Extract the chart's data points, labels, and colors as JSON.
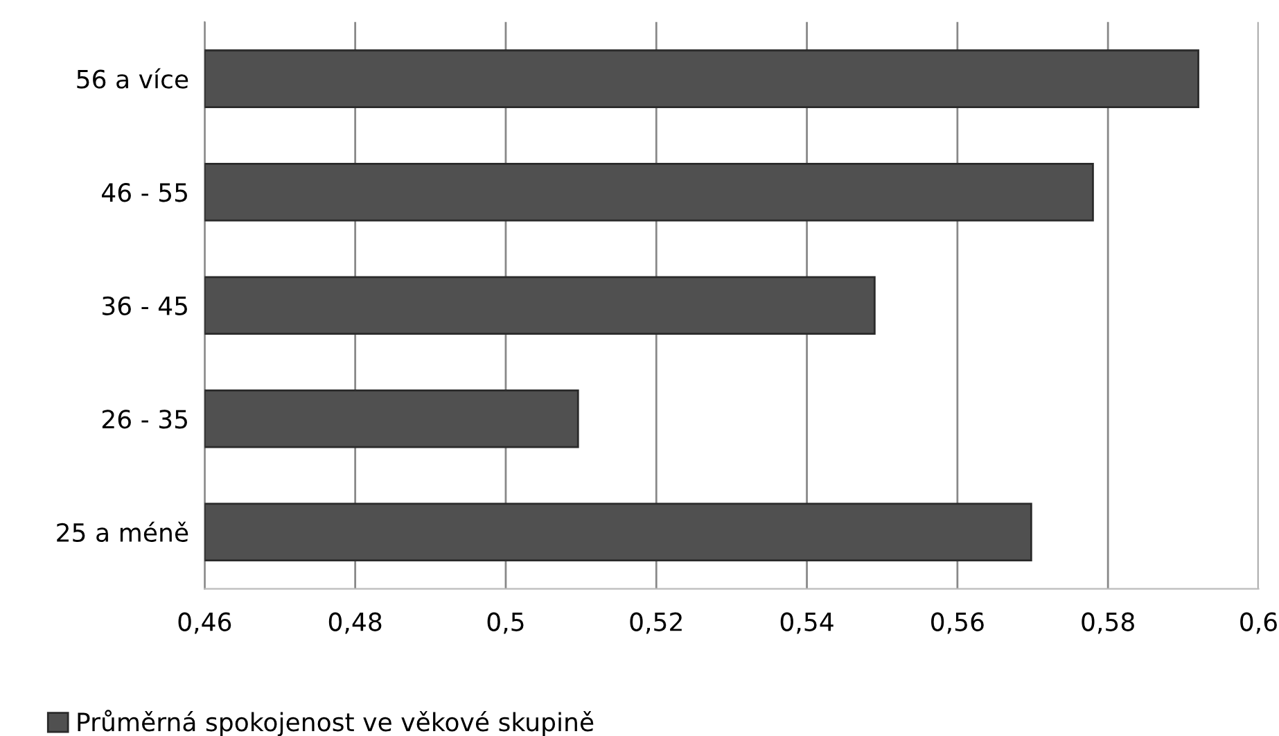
{
  "chart_data": {
    "type": "bar",
    "orientation": "horizontal",
    "categories": [
      "56 a více",
      "46 - 55",
      "36 - 45",
      "26 - 35",
      "25 a méně"
    ],
    "series": [
      {
        "name": "Průměrná spokojenost ve věkové skupině",
        "color": "#505050",
        "values": [
          0.592,
          0.578,
          0.549,
          0.5096,
          0.5698
        ]
      }
    ],
    "xlim": [
      0.46,
      0.6
    ],
    "xticks": [
      {
        "value": 0.46,
        "label": "0,46"
      },
      {
        "value": 0.48,
        "label": "0,48"
      },
      {
        "value": 0.5,
        "label": "0,5"
      },
      {
        "value": 0.52,
        "label": "0,52"
      },
      {
        "value": 0.54,
        "label": "0,54"
      },
      {
        "value": 0.56,
        "label": "0,56"
      },
      {
        "value": 0.58,
        "label": "0,58"
      },
      {
        "value": 0.6,
        "label": "0,6"
      }
    ],
    "grid": "x",
    "legend": "bottom left"
  }
}
